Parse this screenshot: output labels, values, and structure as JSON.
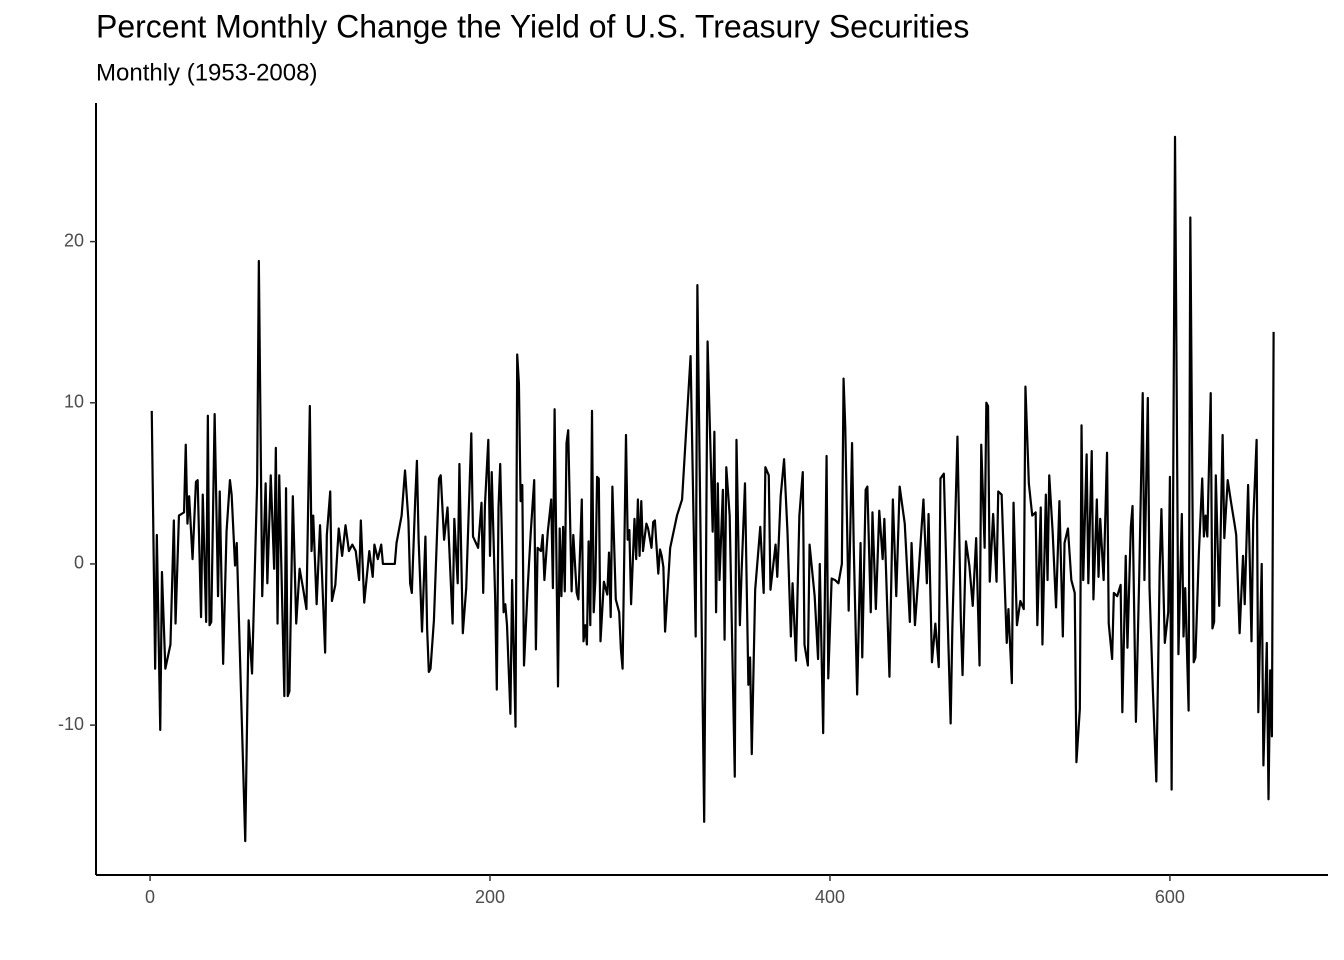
{
  "chart_data": {
    "type": "line",
    "title": "Percent Monthly Change the Yield of U.S. Treasury Securities",
    "subtitle": "Monthly (1953-2008)",
    "color": "#000000",
    "xlim": [
      -31.8,
      693
    ],
    "xticks": [
      0,
      200,
      400,
      600
    ],
    "ylim": [
      -19.3,
      28.6
    ],
    "yticks": [
      -10,
      0,
      10,
      20
    ],
    "grid": false,
    "x": [
      1,
      3,
      4,
      6,
      7,
      9,
      12,
      14,
      15,
      17,
      20,
      21,
      22,
      23,
      25,
      27,
      28,
      30,
      31,
      33,
      34,
      35,
      36,
      38,
      40,
      41,
      43,
      45,
      47,
      48,
      50,
      51,
      56,
      58,
      60,
      63,
      64,
      66,
      68,
      69,
      71,
      73,
      74,
      75,
      76,
      79,
      80,
      81,
      82,
      84,
      86,
      88,
      90,
      92,
      94,
      95,
      96,
      98,
      100,
      103,
      104,
      106,
      107,
      109,
      111,
      113,
      115,
      117,
      119,
      121,
      123,
      124,
      126,
      129,
      131,
      132,
      134,
      136,
      137,
      140,
      144,
      145,
      148,
      150,
      152,
      153,
      154,
      156,
      157,
      158,
      160,
      162,
      163,
      164,
      165,
      167,
      170,
      171,
      173,
      175,
      178,
      179,
      181,
      182,
      184,
      186,
      189,
      190,
      193,
      195,
      196,
      197,
      199,
      200,
      201,
      203,
      204,
      205,
      206,
      208,
      209,
      210,
      212,
      213,
      215,
      216,
      217,
      218,
      219,
      220,
      222,
      224,
      226,
      227,
      228,
      230,
      231,
      232,
      234,
      236,
      237,
      238,
      240,
      241,
      242,
      243,
      244,
      245,
      246,
      248,
      249,
      251,
      252,
      254,
      255,
      256,
      257,
      258,
      259,
      260,
      261,
      262,
      263,
      264,
      265,
      267,
      269,
      270,
      271,
      272,
      274,
      276,
      277,
      278,
      280,
      281,
      282,
      283,
      285,
      286,
      287,
      288,
      289,
      290,
      292,
      293,
      295,
      296,
      297,
      299,
      300,
      301,
      302,
      303,
      306,
      310,
      313,
      318,
      321,
      322,
      326,
      328,
      331,
      332,
      333,
      334,
      335,
      337,
      338,
      339,
      341,
      344,
      345,
      347,
      348,
      350,
      352,
      353,
      354,
      356,
      359,
      361,
      362,
      364,
      365,
      368,
      369,
      371,
      373,
      375,
      377,
      378,
      380,
      382,
      384,
      385,
      387,
      388,
      391,
      393,
      394,
      396,
      398,
      399,
      401,
      403,
      405,
      407,
      408,
      409,
      411,
      413,
      414,
      416,
      418,
      419,
      421,
      422,
      424,
      425,
      427,
      429,
      431,
      432,
      435,
      437,
      439,
      441,
      444,
      447,
      448,
      450,
      452,
      455,
      457,
      458,
      460,
      462,
      464,
      465,
      467,
      469,
      471,
      472,
      475,
      477,
      478,
      480,
      482,
      484,
      486,
      488,
      489,
      491,
      492,
      493,
      494,
      496,
      498,
      499,
      501,
      504,
      505,
      507,
      508,
      510,
      512,
      514,
      515,
      517,
      519,
      521,
      522,
      524,
      525,
      527,
      528,
      529,
      531,
      533,
      535,
      537,
      538,
      540,
      542,
      544,
      545,
      547,
      548,
      549,
      551,
      552,
      554,
      555,
      557,
      558,
      559,
      561,
      563,
      564,
      566,
      567,
      569,
      571,
      572,
      574,
      575,
      577,
      578,
      580,
      582,
      584,
      585,
      587,
      588,
      590,
      592,
      594,
      595,
      597,
      599,
      600,
      601,
      603,
      605,
      607,
      608,
      609,
      611,
      612,
      614,
      615,
      617,
      619,
      620,
      621,
      622,
      624,
      625,
      626,
      627,
      629,
      631,
      632,
      634,
      636,
      638,
      639,
      641,
      643,
      644,
      646,
      648,
      649,
      651,
      652,
      654,
      655,
      657,
      658,
      659,
      660,
      661
    ],
    "values": [
      9.5,
      -6.5,
      1.8,
      -10.3,
      -0.5,
      -6.5,
      -5,
      2.7,
      -3.7,
      3,
      3.2,
      7.4,
      2.5,
      4.2,
      0.3,
      5.1,
      5.2,
      -3.3,
      4.3,
      -3.6,
      9.2,
      -3.8,
      -3.6,
      9.3,
      -2,
      4.5,
      -6.2,
      2,
      5.2,
      4.3,
      -0.1,
      1.3,
      -17.2,
      -3.5,
      -6.8,
      5,
      18.8,
      -2,
      5,
      -1.2,
      5.5,
      -0.3,
      7.2,
      -3.7,
      5.5,
      -8.2,
      4.7,
      -8.2,
      -7.9,
      4.2,
      -3.7,
      -0.3,
      -1.5,
      -2.8,
      9.8,
      0.8,
      3,
      -2.5,
      2.4,
      -5.5,
      1.8,
      4.5,
      -2.3,
      -1.3,
      2.2,
      0.5,
      2.4,
      0.8,
      1.2,
      0.8,
      -1,
      2.7,
      -2.4,
      0.8,
      -0.8,
      1.2,
      0.3,
      1.2,
      0,
      0,
      0,
      1.3,
      3,
      5.8,
      2.7,
      -1.2,
      -1.8,
      4,
      6.4,
      1.5,
      -4.2,
      1.7,
      -4,
      -6.7,
      -6.5,
      -3.5,
      5.3,
      5.5,
      1.5,
      3.5,
      -3.7,
      2.8,
      -1.2,
      6.2,
      -4.3,
      -1.5,
      8.1,
      1.7,
      1,
      3.8,
      -1.8,
      3.6,
      7.7,
      0.5,
      5.7,
      -2,
      -7.8,
      3.5,
      6.2,
      -3,
      -2.5,
      -3.8,
      -9.3,
      -1,
      -10.1,
      13,
      11.2,
      3.9,
      4.9,
      -6.3,
      -1.8,
      2,
      5.2,
      -5.3,
      1,
      0.8,
      1.8,
      -1,
      2,
      4,
      -1.5,
      9.6,
      -7.6,
      2.2,
      -2,
      2.3,
      -1.7,
      7.5,
      8.3,
      -1.7,
      1.8,
      -1.8,
      -2.2,
      4,
      -4.8,
      -3.8,
      -5,
      1.4,
      -3.8,
      9.5,
      -3,
      -1,
      5.4,
      5.3,
      -4.8,
      -1.1,
      -1.9,
      0.7,
      -3.3,
      4.8,
      -2.2,
      -3,
      -5.3,
      -6.5,
      8,
      1.5,
      2.1,
      -2.5,
      2.8,
      0.3,
      4,
      0.5,
      3.9,
      0.8,
      2.5,
      2.2,
      1,
      2.6,
      2.7,
      -0.6,
      0.9,
      0.5,
      -0.2,
      -4.2,
      1,
      3,
      4,
      12.9,
      -4.5,
      17.3,
      -16,
      13.8,
      2,
      8.2,
      -3,
      5,
      -1,
      4.6,
      -4.7,
      6,
      3,
      -13.2,
      7.7,
      -3.8,
      -0.5,
      5,
      -7.5,
      -5.8,
      -11.8,
      -1.6,
      2.3,
      -1.8,
      6,
      5.5,
      -1.6,
      1.2,
      -0.8,
      4.2,
      6.5,
      2,
      -4.5,
      -1.2,
      -6,
      3,
      5.7,
      -5,
      -6.3,
      1.2,
      -2,
      -5.9,
      0,
      -10.5,
      6.7,
      -7.1,
      -0.9,
      -1,
      -1.2,
      0,
      11.5,
      8.5,
      -2.9,
      7.5,
      1,
      -8.1,
      1.3,
      -5.8,
      4.6,
      4.8,
      -3,
      3.2,
      -2.8,
      3.3,
      0.3,
      2.8,
      -7,
      4,
      -2,
      4.8,
      2.5,
      -3.6,
      1.3,
      -3.8,
      -0.8,
      4,
      -1.2,
      3.1,
      -6.1,
      -3.7,
      -6.4,
      5.3,
      5.6,
      -2.5,
      -9.9,
      -4,
      7.9,
      -3.5,
      -6.9,
      1.4,
      -0.1,
      -2.6,
      1.6,
      -6.3,
      7.4,
      1,
      10,
      9.8,
      -1.1,
      3.1,
      -1.1,
      4.5,
      4.3,
      -4.9,
      -2.8,
      -7.4,
      3.8,
      -3.8,
      -2.3,
      -2.8,
      11,
      5,
      3,
      3.2,
      -3.8,
      3.5,
      -5,
      4.3,
      -1,
      5.5,
      2,
      -2.7,
      3.9,
      -4.5,
      1.3,
      2.2,
      -1,
      -1.8,
      -12.3,
      -9,
      8.6,
      -1,
      6.8,
      -1.2,
      7,
      -2.2,
      4,
      -0.8,
      2.8,
      -1,
      6.9,
      -3.7,
      -5.9,
      -1.8,
      -2,
      -1.3,
      -9.2,
      0.5,
      -5.2,
      2.3,
      3.6,
      -9.8,
      -0.5,
      10.6,
      -1,
      10.3,
      -1.5,
      -7.9,
      -13.5,
      -0.2,
      3.4,
      -4.9,
      -3,
      5.4,
      -14,
      26.5,
      -5.6,
      3.1,
      -4.5,
      -1.5,
      -9.1,
      21.5,
      -6.1,
      -5.8,
      0.6,
      5.3,
      1.7,
      3,
      1.7,
      10.6,
      -4,
      -3.6,
      5.5,
      -2.6,
      8,
      1.6,
      5.2,
      3.8,
      2.5,
      1.8,
      -4.3,
      0.5,
      -2.5,
      4.9,
      -4.8,
      2.6,
      7.7,
      -9.2,
      0,
      -12.5,
      -4.9,
      -14.6,
      -6.6,
      -10.7,
      14.4
    ]
  }
}
